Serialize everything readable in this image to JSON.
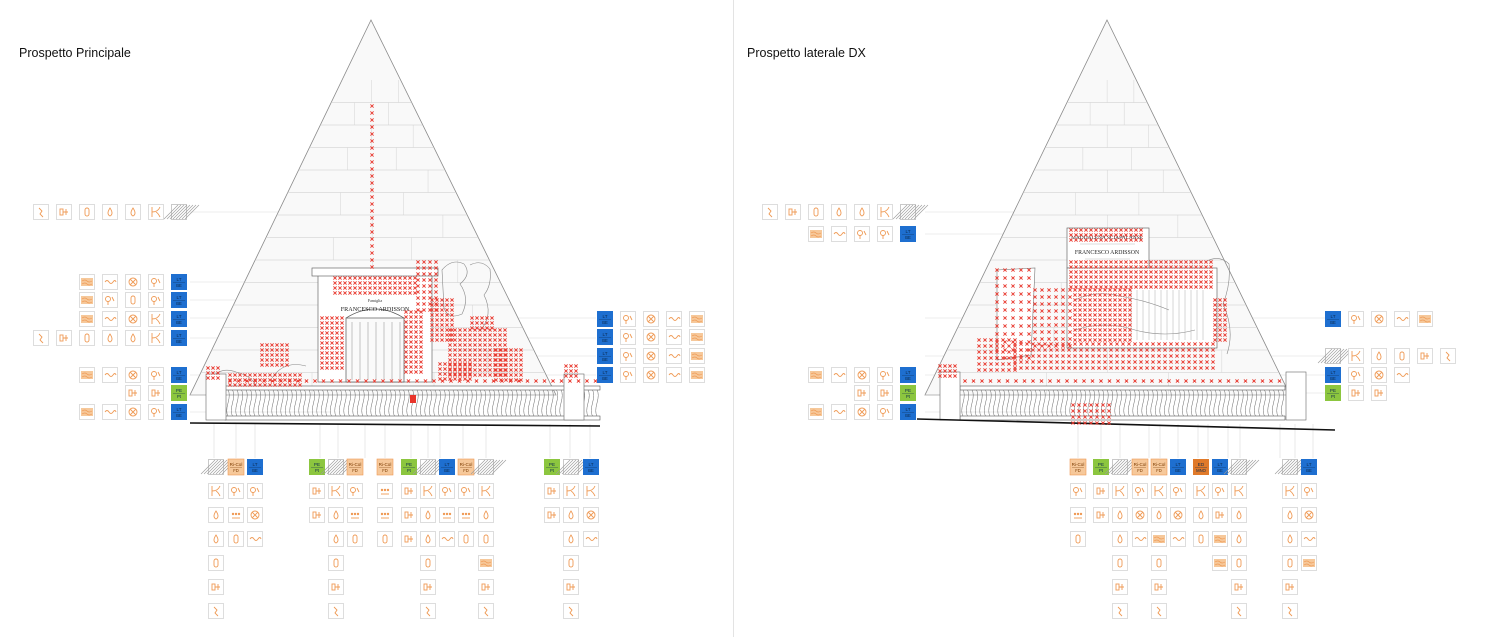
{
  "panels": [
    {
      "id": "left",
      "title": "Prospetto Principale",
      "inscription": {
        "line1": "Famiglia",
        "line2": "FRANCESCO ARDISSON"
      }
    },
    {
      "id": "right",
      "title": "Prospetto laterale DX",
      "inscription": {
        "line1": "MADDALENA SCIAPALANSE",
        "line2": "FRANCESCO ARDISSON"
      }
    }
  ],
  "legend_colors": {
    "orange": "#ef9a55",
    "orange_fill": "#f6c89a",
    "dark_orange": "#e07a2a",
    "blue": "#1e6fd0",
    "green": "#8cc63f",
    "hatch_grey": "#9c9c9c",
    "decay_marker": "#e8352b"
  },
  "tile_codes": {
    "blue": [
      "LT",
      "BE"
    ],
    "green": [
      "PE",
      "Pt"
    ],
    "ricol": [
      "Ri-Col",
      "FD"
    ],
    "ed": [
      "ED",
      "MNO"
    ]
  },
  "icons": [
    "crack-icon",
    "lacuna-icon",
    "drip-icon",
    "stain-icon",
    "biological-growth-icon",
    "deposit-icon",
    "crust-icon",
    "patina-icon",
    "detachment-icon",
    "hatch-icon"
  ]
}
